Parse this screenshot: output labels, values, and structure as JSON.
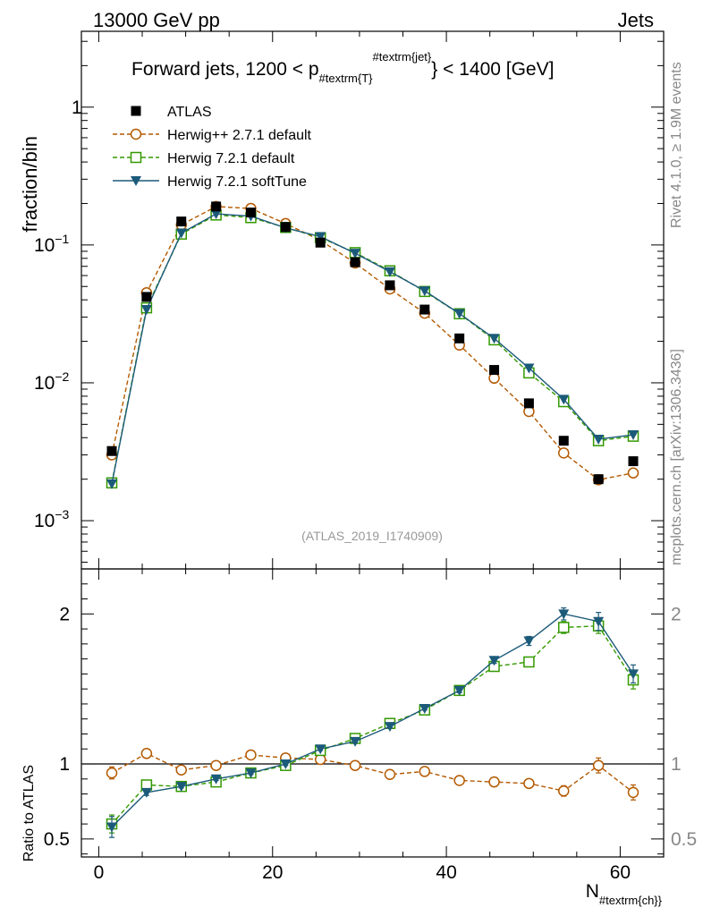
{
  "header": {
    "left": "13000 GeV pp",
    "right": "Jets"
  },
  "side_text": {
    "rivet": "Rivet 4.1.0, ≥ 1.9M events",
    "mcplots": "mcplots.cern.ch [arXiv:1306.3436]"
  },
  "watermark": "(ATLAS_2019_I1740909)",
  "chart_data": [
    {
      "type": "scatter",
      "panel": "main",
      "title": "Forward jets, 1200 < p",
      "title_sub": "#textrm{T}",
      "title_sup": "#textrm{jet}",
      "title_rest": "} < 1400 [GeV]",
      "xlabel_main": "N",
      "xlabel_sub": "#textrm{ch}",
      "xlabel_close": "}",
      "ylabel": "fraction/bin",
      "xlim": [
        -2,
        65
      ],
      "ylim_log10": [
        -3.35,
        0.55
      ],
      "yscale": "log",
      "x_ticks": [
        0,
        20,
        40,
        60
      ],
      "y_tick_labels": [
        {
          "exp": -3,
          "base": "10",
          "sup": "−3"
        },
        {
          "exp": -2,
          "base": "10",
          "sup": "−2"
        },
        {
          "exp": -1,
          "base": "10",
          "sup": "−1"
        },
        {
          "exp": 0,
          "base": "1",
          "sup": ""
        }
      ],
      "x": [
        1.5,
        5.5,
        9.5,
        13.5,
        17.5,
        21.5,
        25.5,
        29.5,
        33.5,
        37.5,
        41.5,
        45.5,
        49.5,
        53.5,
        57.5,
        61.5
      ],
      "series": [
        {
          "name": "ATLAS",
          "color": "#000000",
          "marker": "square",
          "line": "none",
          "values": [
            0.0032,
            0.042,
            0.148,
            0.19,
            0.172,
            0.135,
            0.104,
            0.075,
            0.051,
            0.034,
            0.021,
            0.0124,
            0.0071,
            0.0038,
            0.002,
            0.0027
          ]
        },
        {
          "name": "Herwig++ 2.7.1 default",
          "color": "#b35900",
          "marker": "circle",
          "line": "dashed",
          "values": [
            0.003,
            0.045,
            0.14,
            0.19,
            0.184,
            0.143,
            0.108,
            0.074,
            0.048,
            0.032,
            0.0188,
            0.0108,
            0.0062,
            0.0031,
            0.00198,
            0.00222
          ]
        },
        {
          "name": "Herwig 7.2.1 default",
          "color": "#339900",
          "marker": "square-open",
          "line": "dashed",
          "values": [
            0.00188,
            0.035,
            0.12,
            0.165,
            0.158,
            0.134,
            0.113,
            0.088,
            0.065,
            0.046,
            0.0317,
            0.0205,
            0.0118,
            0.0073,
            0.0038,
            0.0041
          ]
        },
        {
          "name": "Herwig 7.2.1 softTune",
          "color": "#1c5a7a",
          "marker": "triangle-down",
          "line": "solid",
          "values": [
            0.00185,
            0.034,
            0.122,
            0.168,
            0.162,
            0.133,
            0.115,
            0.087,
            0.064,
            0.0465,
            0.0318,
            0.021,
            0.0128,
            0.0076,
            0.0039,
            0.0042
          ]
        }
      ]
    },
    {
      "type": "scatter",
      "panel": "ratio",
      "ylabel": "Ratio to ATLAS",
      "xlim": [
        -2,
        65
      ],
      "ylim": [
        0.38,
        2.3
      ],
      "y_ticks": [
        0.5,
        1,
        2
      ],
      "y_tick_labels": [
        "0.5",
        "1",
        "2"
      ],
      "reference_line": 1,
      "x": [
        1.5,
        5.5,
        9.5,
        13.5,
        17.5,
        21.5,
        25.5,
        29.5,
        33.5,
        37.5,
        41.5,
        45.5,
        49.5,
        53.5,
        57.5,
        61.5
      ],
      "series": [
        {
          "name": "Herwig++ 2.7.1 default",
          "color": "#b35900",
          "marker": "circle",
          "line": "dashed",
          "values": [
            0.94,
            1.07,
            0.96,
            0.99,
            1.06,
            1.04,
            1.03,
            0.99,
            0.93,
            0.95,
            0.89,
            0.88,
            0.87,
            0.82,
            0.99,
            0.81
          ],
          "errors": [
            0.04,
            0.02,
            0.01,
            0.01,
            0.01,
            0.01,
            0.01,
            0.01,
            0.01,
            0.01,
            0.015,
            0.02,
            0.025,
            0.035,
            0.05,
            0.05
          ]
        },
        {
          "name": "Herwig 7.2.1 default",
          "color": "#339900",
          "marker": "square-open",
          "line": "dashed",
          "values": [
            0.6,
            0.86,
            0.85,
            0.88,
            0.94,
            0.99,
            1.09,
            1.17,
            1.27,
            1.36,
            1.49,
            1.65,
            1.68,
            1.91,
            1.92,
            1.56
          ],
          "errors": [
            0.06,
            0.02,
            0.01,
            0.01,
            0.01,
            0.01,
            0.01,
            0.01,
            0.01,
            0.01,
            0.015,
            0.02,
            0.025,
            0.04,
            0.05,
            0.06
          ]
        },
        {
          "name": "Herwig 7.2.1 softTune",
          "color": "#1c5a7a",
          "marker": "triangle-down",
          "line": "solid",
          "values": [
            0.58,
            0.81,
            0.85,
            0.9,
            0.94,
            1.0,
            1.1,
            1.15,
            1.25,
            1.37,
            1.49,
            1.69,
            1.82,
            2.0,
            1.95,
            1.6
          ],
          "errors": [
            0.07,
            0.02,
            0.01,
            0.01,
            0.01,
            0.01,
            0.01,
            0.01,
            0.01,
            0.01,
            0.015,
            0.02,
            0.03,
            0.04,
            0.06,
            0.06
          ]
        }
      ]
    }
  ]
}
